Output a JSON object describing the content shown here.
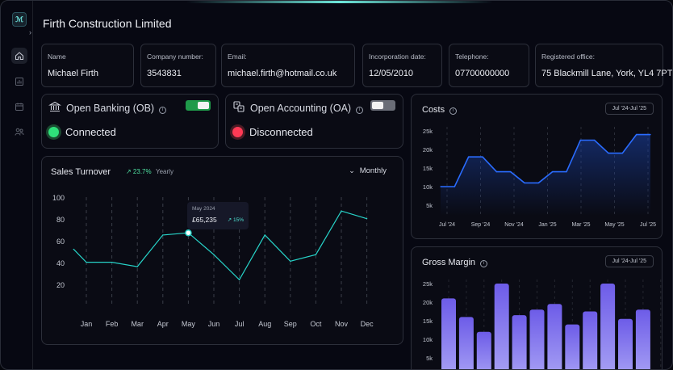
{
  "company": {
    "title": "Firth Construction Limited"
  },
  "info": [
    {
      "label": "Name",
      "value": "Michael Firth"
    },
    {
      "label": "Company number:",
      "value": "3543831"
    },
    {
      "label": "Email:",
      "value": "michael.firth@hotmail.co.uk"
    },
    {
      "label": "Incorporation date:",
      "value": "12/05/2010"
    },
    {
      "label": "Telephone:",
      "value": "07700000000"
    },
    {
      "label": "Registered office:",
      "value": "75 Blackmill Lane, York, YL4 7PT"
    }
  ],
  "open_banking": {
    "title": "Open Banking (OB)",
    "status": "Connected",
    "enabled": true,
    "color": "#2fe07a"
  },
  "open_accounting": {
    "title": "Open Accounting (OA)",
    "status": "Disconnected",
    "enabled": false,
    "color": "#ff3a55"
  },
  "sales": {
    "title": "Sales Turnover",
    "change": "↗ 23.7%",
    "change_period": "Yearly",
    "period_select": "Monthly",
    "tooltip": {
      "month": "May 2024",
      "value": "£65,235",
      "change": "↗ 15%"
    }
  },
  "costs": {
    "title": "Costs",
    "range": "Jul '24-Jul '25"
  },
  "gross_margin": {
    "title": "Gross Margin",
    "range": "Jul '24-Jul '25"
  },
  "icons": {
    "sidebar": [
      "home-icon",
      "chart-icon",
      "calendar-icon",
      "people-icon"
    ]
  },
  "chart_data": [
    {
      "type": "line",
      "title": "Sales Turnover",
      "categories": [
        "Jan",
        "Feb",
        "Mar",
        "Apr",
        "May",
        "Jun",
        "Jul",
        "Aug",
        "Sep",
        "Oct",
        "Nov",
        "Dec"
      ],
      "x": [
        0,
        0.5,
        1,
        1.5,
        2,
        2.5,
        3,
        3.5,
        4,
        4.5,
        5,
        5.5,
        6,
        6.5,
        7,
        7.5,
        8,
        8.5,
        9,
        9.5,
        10,
        10.5,
        11
      ],
      "values": [
        53,
        41,
        41,
        37,
        66,
        68,
        48,
        25,
        66,
        42,
        48,
        88,
        81
      ],
      "x_values": [
        -0.5,
        0,
        1,
        2,
        3,
        4,
        5,
        6,
        7,
        8,
        9,
        10,
        11
      ],
      "yticks": [
        20,
        40,
        60,
        80,
        100
      ],
      "ylim": [
        0,
        100
      ],
      "highlight": {
        "category": "May",
        "value": 68
      },
      "color": "#27d3c8"
    },
    {
      "type": "area",
      "title": "Costs",
      "xticks": [
        "Jul '24",
        "Sep '24",
        "Nov '24",
        "Jan '25",
        "Mar '25",
        "May '25",
        "Jul '25"
      ],
      "values": [
        10,
        10,
        18,
        18,
        14,
        14,
        11,
        11,
        14,
        14,
        22.5,
        22.5,
        19,
        19,
        24,
        24
      ],
      "yticks": [
        "5k",
        "10k",
        "15k",
        "20k",
        "25k"
      ],
      "ylim": [
        0,
        27
      ],
      "color": "#2a6cff"
    },
    {
      "type": "bar",
      "title": "Gross Margin",
      "values": [
        21,
        16,
        12,
        25,
        16.5,
        18,
        19.5,
        14,
        17.5,
        25,
        15.5,
        18
      ],
      "yticks": [
        "5k",
        "10k",
        "15k",
        "20k",
        "25k"
      ],
      "ylim": [
        0,
        27
      ],
      "color": "#7b6cf0"
    }
  ]
}
